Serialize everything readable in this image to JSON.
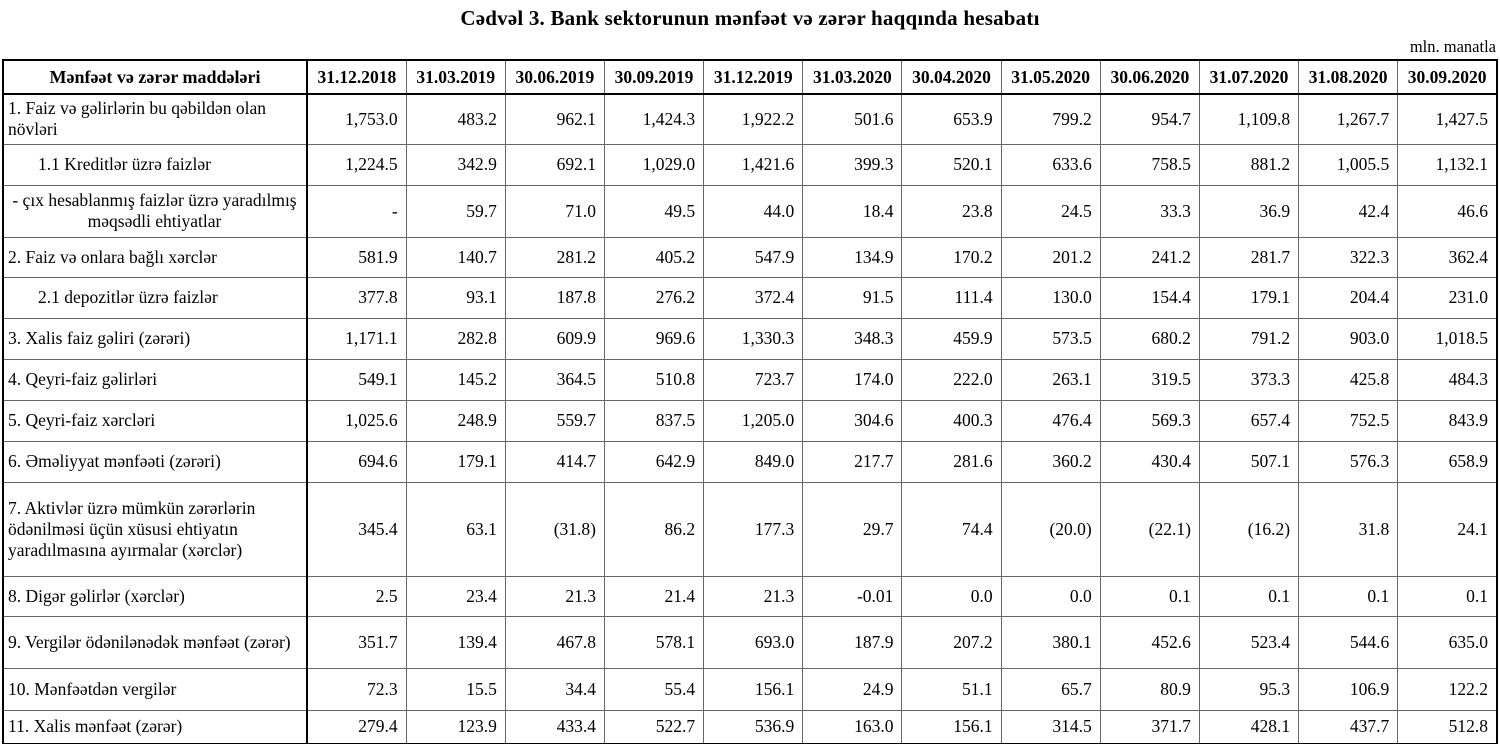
{
  "title": "Cədvəl 3. Bank sektorunun mənfəət və zərər haqqında hesabatı",
  "unit_note": "mln. manatla",
  "table": {
    "header": [
      "Mənfəət və zərər maddələri",
      "31.12.2018",
      "31.03.2019",
      "30.06.2019",
      "30.09.2019",
      "31.12.2019",
      "31.03.2020",
      "30.04.2020",
      "31.05.2020",
      "30.06.2020",
      "31.07.2020",
      "31.08.2020",
      "30.09.2020"
    ],
    "rows": [
      {
        "label": "1. Faiz və gəlirlərin bu qəbildən olan növləri",
        "style": "main",
        "values": [
          "1,753.0",
          "483.2",
          "962.1",
          "1,424.3",
          "1,922.2",
          "501.6",
          "653.9",
          "799.2",
          "954.7",
          "1,109.8",
          "1,267.7",
          "1,427.5"
        ]
      },
      {
        "label": "1.1 Kreditlər üzrə faizlər",
        "style": "indent",
        "values": [
          "1,224.5",
          "342.9",
          "692.1",
          "1,029.0",
          "1,421.6",
          "399.3",
          "520.1",
          "633.6",
          "758.5",
          "881.2",
          "1,005.5",
          "1,132.1"
        ]
      },
      {
        "label": "-  çıx hesablanmış faizlər üzrə yaradılmış məqsədli ehtiyatlar",
        "style": "center",
        "values": [
          "-",
          "59.7",
          "71.0",
          "49.5",
          "44.0",
          "18.4",
          "23.8",
          "24.5",
          "33.3",
          "36.9",
          "42.4",
          "46.6"
        ]
      },
      {
        "label": "2. Faiz və onlara bağlı xərclər",
        "style": "main",
        "values": [
          "581.9",
          "140.7",
          "281.2",
          "405.2",
          "547.9",
          "134.9",
          "170.2",
          "201.2",
          "241.2",
          "281.7",
          "322.3",
          "362.4"
        ]
      },
      {
        "label": "2.1 depozitlər üzrə faizlər",
        "style": "indent",
        "values": [
          "377.8",
          "93.1",
          "187.8",
          "276.2",
          "372.4",
          "91.5",
          "111.4",
          "130.0",
          "154.4",
          "179.1",
          "204.4",
          "231.0"
        ]
      },
      {
        "label": "3. Xalis faiz gəliri (zərəri)",
        "style": "main",
        "values": [
          "1,171.1",
          "282.8",
          "609.9",
          "969.6",
          "1,330.3",
          "348.3",
          "459.9",
          "573.5",
          "680.2",
          "791.2",
          "903.0",
          "1,018.5"
        ]
      },
      {
        "label": "4. Qeyri-faiz gəlirləri",
        "style": "main",
        "values": [
          "549.1",
          "145.2",
          "364.5",
          "510.8",
          "723.7",
          "174.0",
          "222.0",
          "263.1",
          "319.5",
          "373.3",
          "425.8",
          "484.3"
        ]
      },
      {
        "label": "5. Qeyri-faiz xərcləri",
        "style": "main",
        "values": [
          "1,025.6",
          "248.9",
          "559.7",
          "837.5",
          "1,205.0",
          "304.6",
          "400.3",
          "476.4",
          "569.3",
          "657.4",
          "752.5",
          "843.9"
        ]
      },
      {
        "label": "6. Əməliyyat mənfəəti (zərəri)",
        "style": "main",
        "values": [
          "694.6",
          "179.1",
          "414.7",
          "642.9",
          "849.0",
          "217.7",
          "281.6",
          "360.2",
          "430.4",
          "507.1",
          "576.3",
          "658.9"
        ]
      },
      {
        "label": "7. Aktivlər üzrə mümkün zərərlərin ödənilməsi üçün xüsusi ehtiyatın yaradılmasına ayırmalar (xərclər)",
        "style": "main",
        "values": [
          "345.4",
          "63.1",
          "(31.8)",
          "86.2",
          "177.3",
          "29.7",
          "74.4",
          "(20.0)",
          "(22.1)",
          "(16.2)",
          "31.8",
          "24.1"
        ]
      },
      {
        "label": "8. Digər gəlirlər (xərclər)",
        "style": "main",
        "values": [
          "2.5",
          "23.4",
          "21.3",
          "21.4",
          "21.3",
          "-0.01",
          "0.0",
          "0.0",
          "0.1",
          "0.1",
          "0.1",
          "0.1"
        ]
      },
      {
        "label": "9. Vergilər ödənilənədək mənfəət (zərər)",
        "style": "main",
        "values": [
          "351.7",
          "139.4",
          "467.8",
          "578.1",
          "693.0",
          "187.9",
          "207.2",
          "380.1",
          "452.6",
          "523.4",
          "544.6",
          "635.0"
        ]
      },
      {
        "label": "10. Mənfəətdən vergilər",
        "style": "main",
        "values": [
          "72.3",
          "15.5",
          "34.4",
          "55.4",
          "156.1",
          "24.9",
          "51.1",
          "65.7",
          "80.9",
          "95.3",
          "106.9",
          "122.2"
        ]
      },
      {
        "label": "11. Xalis mənfəət (zərər)",
        "style": "main",
        "values": [
          "279.4",
          "123.9",
          "433.4",
          "522.7",
          "536.9",
          "163.0",
          "156.1",
          "314.5",
          "371.7",
          "428.1",
          "437.7",
          "512.8"
        ]
      }
    ]
  }
}
